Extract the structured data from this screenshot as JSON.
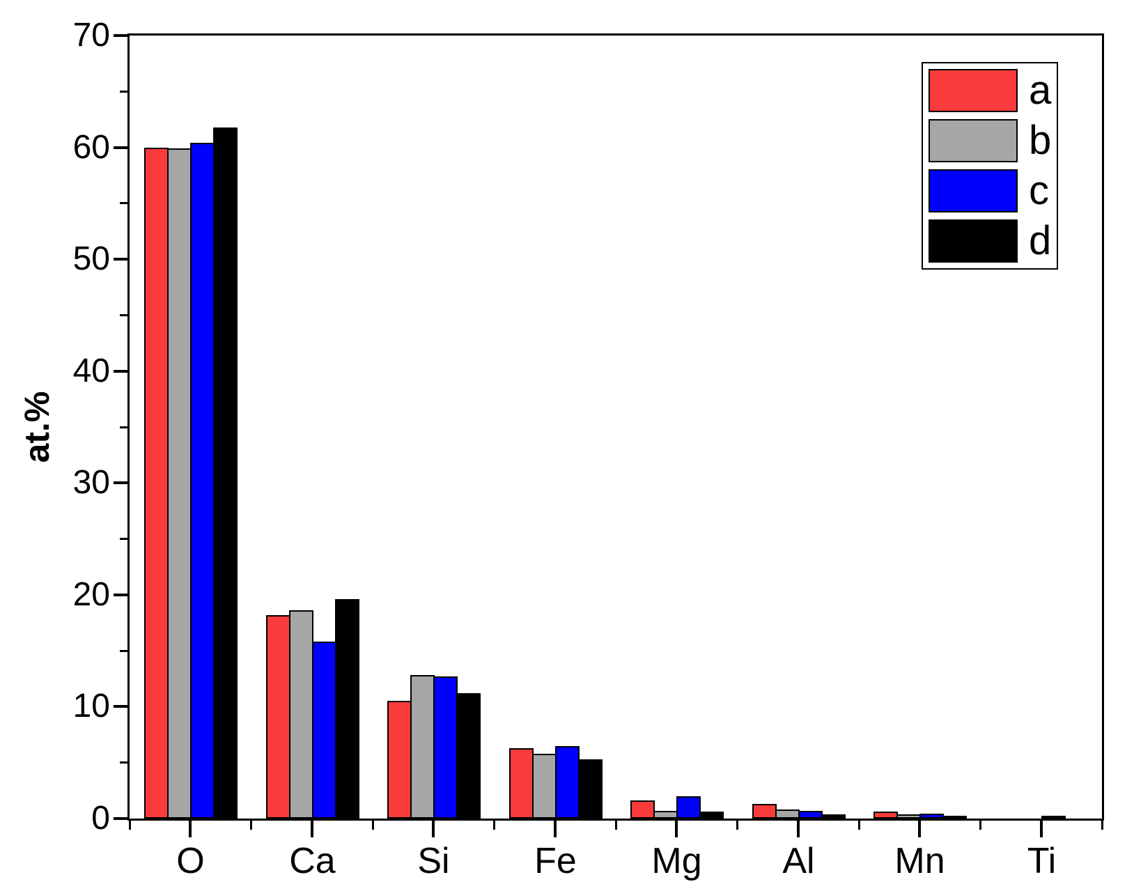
{
  "chart_data": {
    "type": "bar",
    "title": "",
    "xlabel": "",
    "ylabel": "at.%",
    "ylim": [
      0,
      70
    ],
    "yticks": [
      0,
      10,
      20,
      30,
      40,
      50,
      60,
      70
    ],
    "ytick_minor_step": 5,
    "grid": "off",
    "legend_position": "top-right",
    "categories": [
      "O",
      "Ca",
      "Si",
      "Fe",
      "Mg",
      "Al",
      "Mn",
      "Ti"
    ],
    "series": [
      {
        "name": "a",
        "color": "#FA3B3B",
        "values": [
          60.0,
          18.2,
          10.5,
          6.3,
          1.6,
          1.3,
          0.6,
          0
        ]
      },
      {
        "name": "b",
        "color": "#A6A6A6",
        "values": [
          59.9,
          18.6,
          12.8,
          5.8,
          0.7,
          0.8,
          0.4,
          0
        ]
      },
      {
        "name": "c",
        "color": "#0000FF",
        "values": [
          60.4,
          15.8,
          12.7,
          6.5,
          2.0,
          0.7,
          0.45,
          0.2
        ]
      },
      {
        "name": "d",
        "color": "#000000",
        "values": [
          61.8,
          19.6,
          11.2,
          5.3,
          0.6,
          0.4,
          0.25,
          0
        ]
      }
    ]
  }
}
